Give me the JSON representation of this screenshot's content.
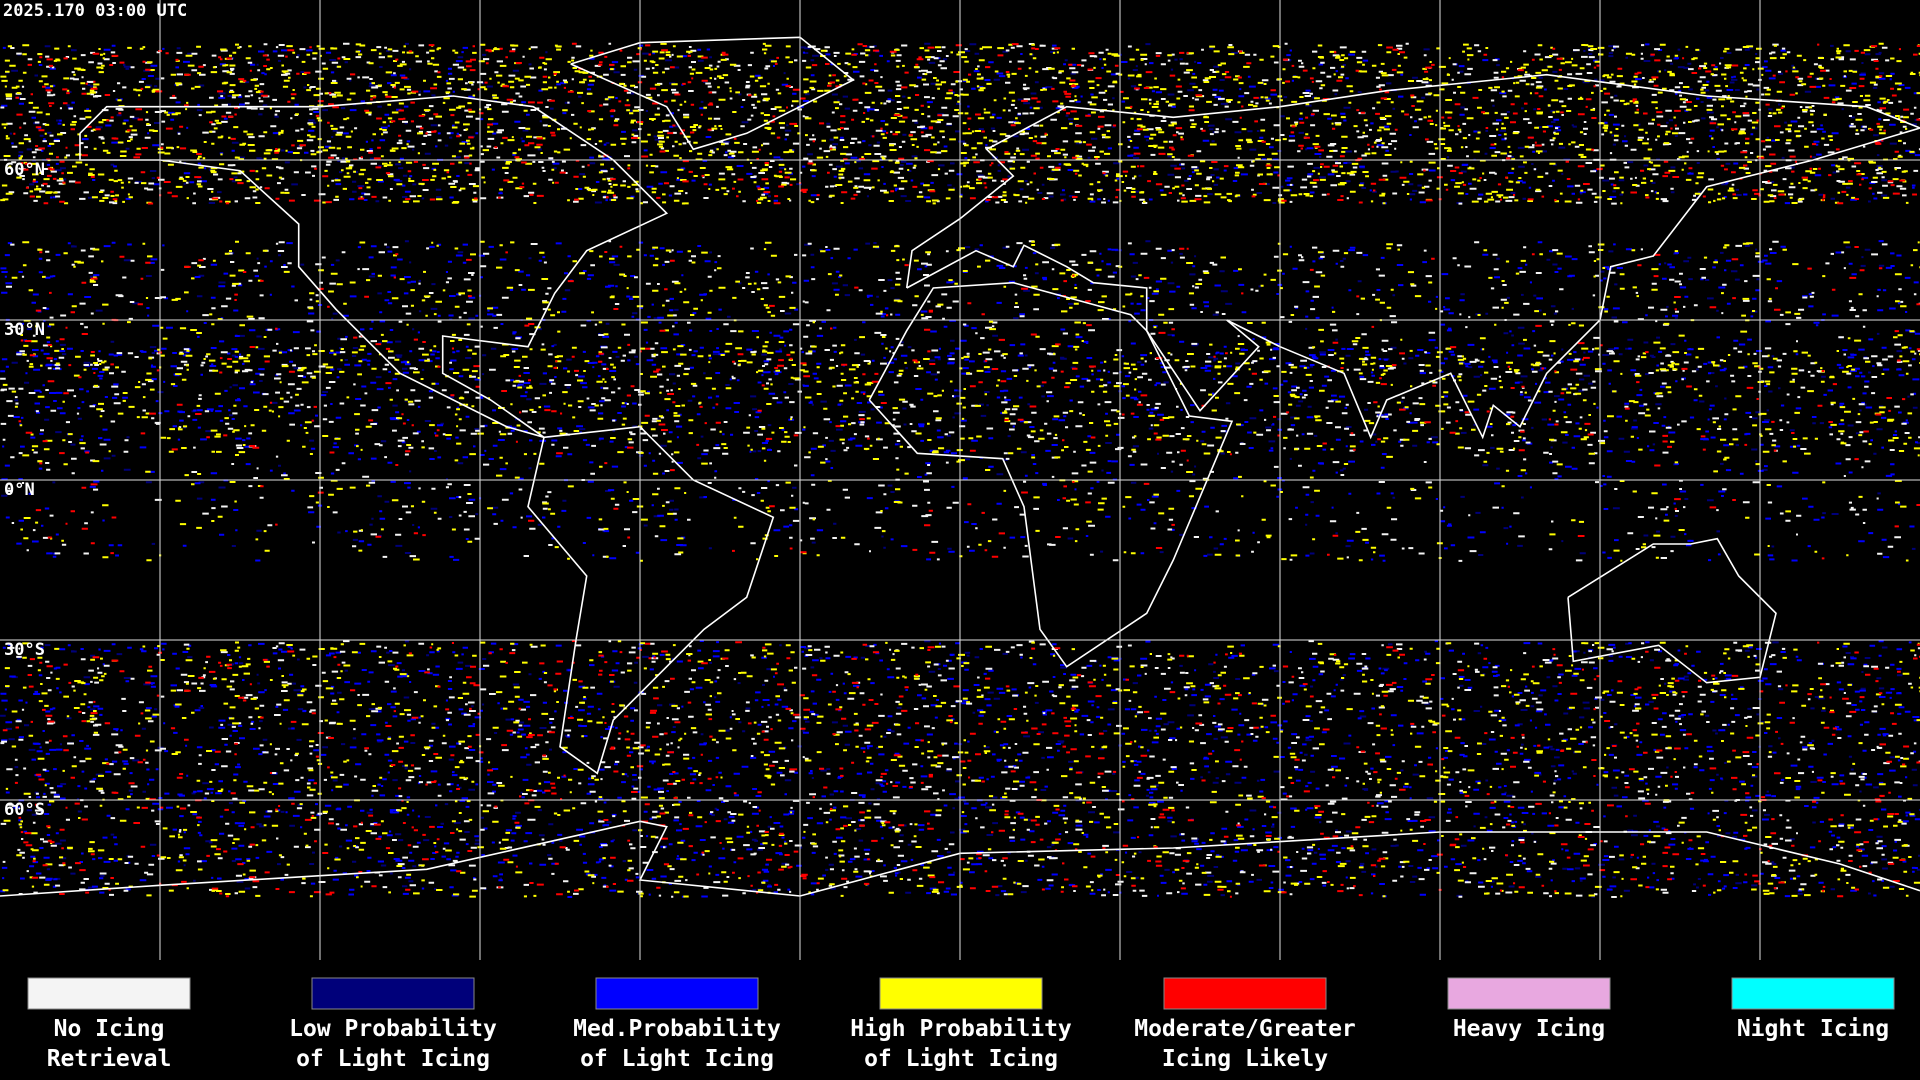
{
  "header": {
    "timestamp": "2025.170 03:00 UTC"
  },
  "latitude_labels": [
    "60°N",
    "30°N",
    "0°N",
    "30°S",
    "60°S"
  ],
  "legend": [
    {
      "lines": [
        "No Icing",
        "Retrieval"
      ],
      "color": "#f4f4f4"
    },
    {
      "lines": [
        "Low Probability",
        "of Light Icing"
      ],
      "color": "#00007a"
    },
    {
      "lines": [
        "Med.Probability",
        "of Light Icing"
      ],
      "color": "#0000ff"
    },
    {
      "lines": [
        "High Probability",
        "of Light Icing"
      ],
      "color": "#ffff00"
    },
    {
      "lines": [
        "Moderate/Greater",
        "Icing Likely"
      ],
      "color": "#ff0000"
    },
    {
      "lines": [
        "Heavy Icing"
      ],
      "color": "#e8a8e0"
    },
    {
      "lines": [
        "Night Icing"
      ],
      "color": "#00ffff"
    }
  ]
}
